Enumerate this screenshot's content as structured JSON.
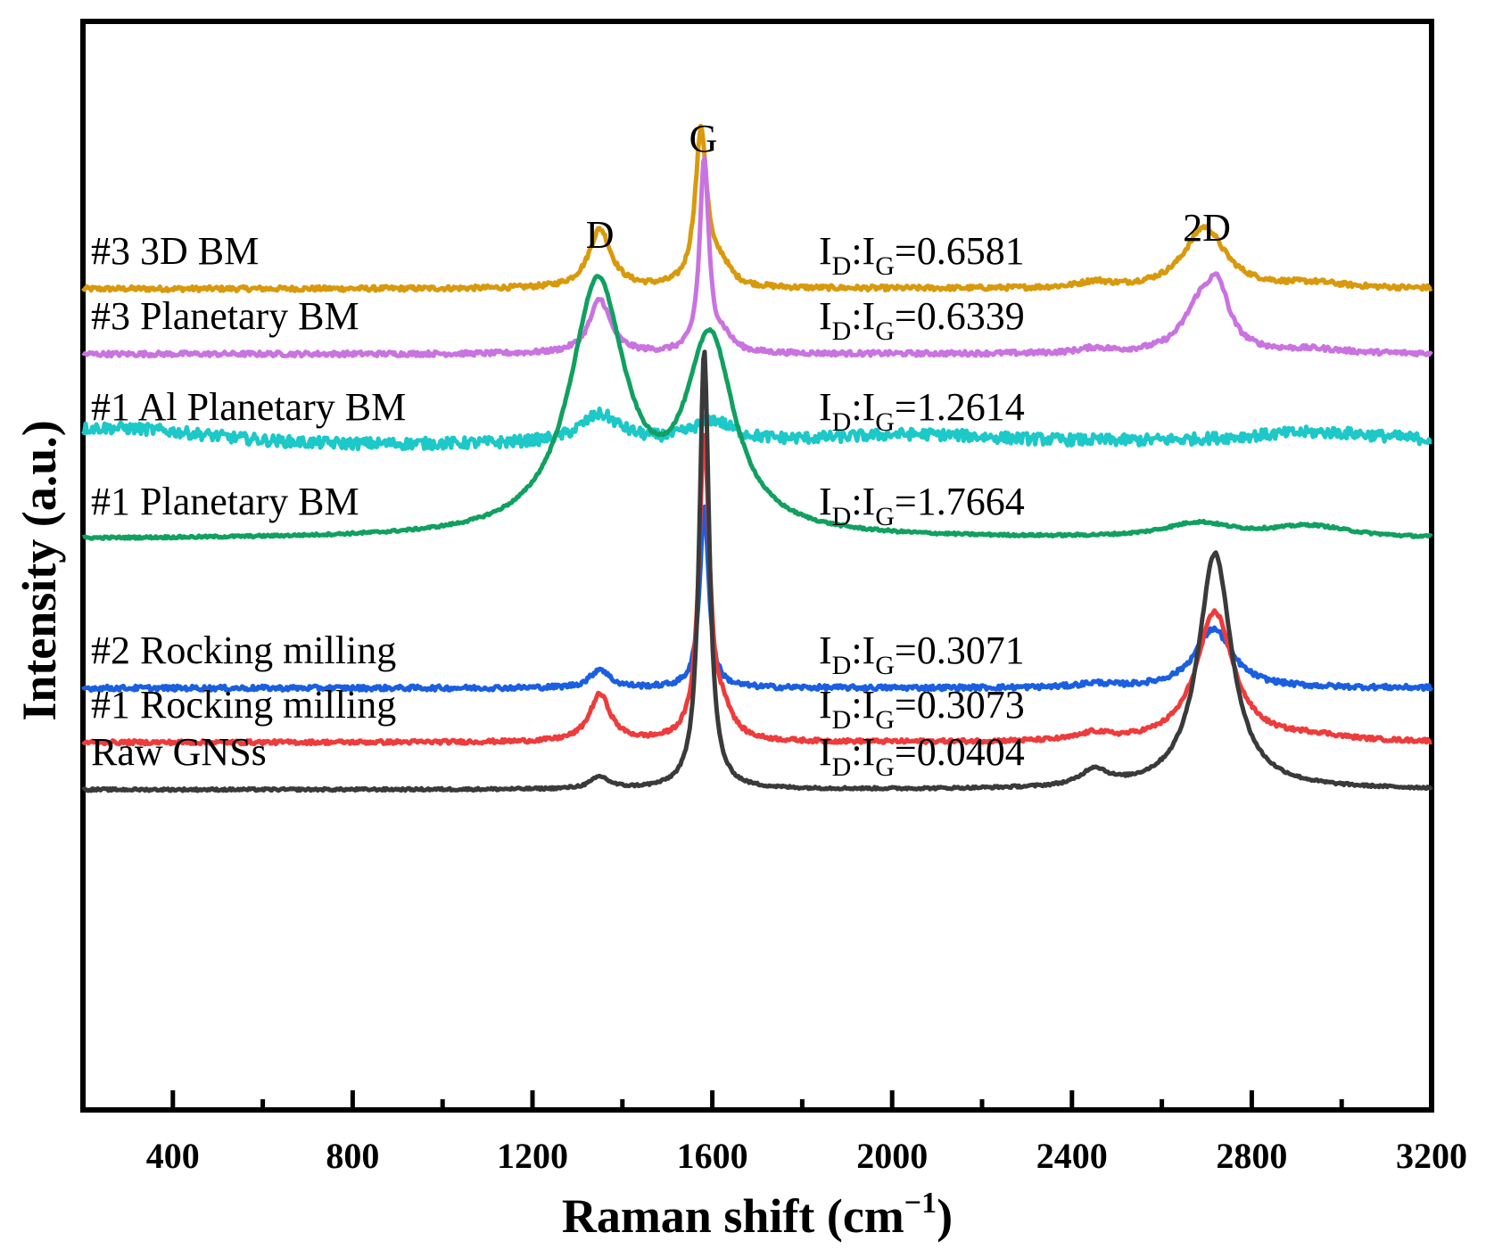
{
  "chart_data": {
    "type": "line",
    "title": "",
    "xlabel": "Raman shift (cm",
    "xlabel_sup": "−1",
    "xlabel_close": ")",
    "ylabel": "Intensity (a.u.)",
    "xlim": [
      200,
      3200
    ],
    "xticks": [
      400,
      800,
      1200,
      1600,
      2000,
      2400,
      2800,
      3200
    ],
    "xtick_labels": [
      "400",
      "800",
      "1200",
      "1600",
      "2000",
      "2400",
      "2800",
      "3200"
    ],
    "minor_xticks": [
      600,
      1000,
      1400,
      1800,
      2200,
      2600,
      3000
    ],
    "peak_labels": [
      {
        "label": "D",
        "x": 1350
      },
      {
        "label": "G",
        "x": 1580
      },
      {
        "label": "2D",
        "x": 2700
      }
    ],
    "ratio_prefix_main": "I",
    "ratio_sub_d": "D",
    "ratio_colon": ":I",
    "ratio_sub_g": "G",
    "series": [
      {
        "name": "#3 3D BM",
        "color": "#d89a0c",
        "ratio": "=0.6581",
        "offset": 6.15,
        "baseline": 0.0,
        "noise": 0.05,
        "peaks": [
          [
            1350,
            30,
            1.25
          ],
          [
            1575,
            16,
            3.3
          ],
          [
            1620,
            25,
            0.4
          ],
          [
            2450,
            40,
            0.12
          ],
          [
            2695,
            55,
            1.3
          ],
          [
            2940,
            80,
            0.1
          ]
        ]
      },
      {
        "name": "#3 Planetary BM",
        "color": "#c973e0",
        "ratio": "=0.6339",
        "offset": 4.77,
        "baseline": 0.0,
        "noise": 0.05,
        "peaks": [
          [
            1350,
            28,
            1.15
          ],
          [
            1582,
            12,
            4.1
          ],
          [
            1625,
            25,
            0.3
          ],
          [
            2450,
            40,
            0.1
          ],
          [
            2685,
            45,
            0.95
          ],
          [
            2725,
            30,
            1.1
          ],
          [
            2940,
            80,
            0.08
          ]
        ]
      },
      {
        "name": "#1 Al Planetary BM",
        "color": "#1cc8c8",
        "ratio": "=1.2614",
        "offset": 2.85,
        "baseline": 0.35,
        "noise": 0.12,
        "peaks": [
          [
            1350,
            55,
            0.6
          ],
          [
            1600,
            55,
            0.45
          ],
          [
            2050,
            250,
            0.2
          ],
          [
            2950,
            220,
            0.25
          ]
        ]
      },
      {
        "name": "#1 Planetary BM",
        "color": "#10a060",
        "ratio": "=1.7664",
        "offset": 0.85,
        "baseline": 0.0,
        "noise": 0.025,
        "peaks": [
          [
            1345,
            75,
            5.3
          ],
          [
            1595,
            65,
            4.0
          ],
          [
            2680,
            90,
            0.3
          ],
          [
            2930,
            110,
            0.25
          ]
        ]
      },
      {
        "name": "#2 Rocking milling",
        "color": "#1a5fe0",
        "ratio": "=0.3071",
        "offset": -2.3,
        "baseline": 0.0,
        "noise": 0.05,
        "peaks": [
          [
            1350,
            25,
            0.4
          ],
          [
            1582,
            12,
            3.85
          ],
          [
            2450,
            40,
            0.08
          ],
          [
            2715,
            50,
            1.25
          ]
        ]
      },
      {
        "name": "#1 Rocking milling",
        "color": "#ee3b3b",
        "ratio": "=0.3073",
        "offset": -3.45,
        "baseline": 0.0,
        "noise": 0.04,
        "peaks": [
          [
            1350,
            28,
            1.0
          ],
          [
            1582,
            14,
            6.4
          ],
          [
            1625,
            25,
            0.5
          ],
          [
            2450,
            40,
            0.15
          ],
          [
            2718,
            50,
            2.75
          ],
          [
            2940,
            80,
            0.1
          ]
        ]
      },
      {
        "name": "Raw GNSs",
        "color": "#3a3a3a",
        "ratio": "=0.0404",
        "offset": -4.45,
        "baseline": 0.0,
        "noise": 0.025,
        "peaks": [
          [
            1350,
            25,
            0.25
          ],
          [
            1582,
            13,
            9.3
          ],
          [
            2450,
            35,
            0.35
          ],
          [
            2718,
            45,
            5.0
          ]
        ]
      }
    ]
  }
}
